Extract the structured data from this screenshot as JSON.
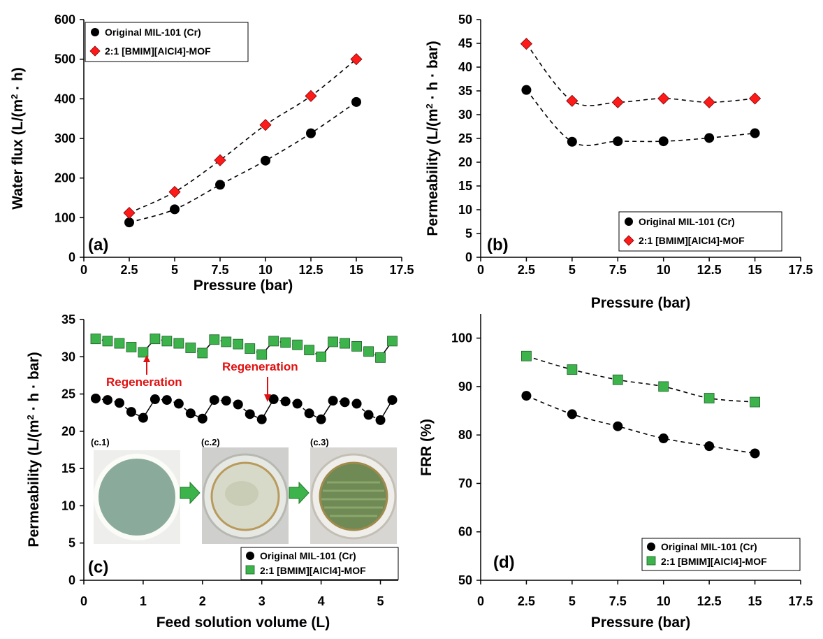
{
  "colors": {
    "original": "#000000",
    "ionic_red": "#ff1a1a",
    "ionic_green": "#3cb44b",
    "annotation": "#e01010"
  },
  "legend": {
    "series_a": "Original MIL-101 (Cr)",
    "series_b": "2:1 [BMIM][AlCl4]-MOF"
  },
  "chart_data": [
    {
      "panel": "(a)",
      "type": "scatter",
      "xlabel": "Pressure (bar)",
      "ylabel": "Water flux (L/(m2 · h)",
      "xlim": [
        0,
        17.5
      ],
      "ylim": [
        0,
        600
      ],
      "xticks": [
        "0",
        "2.5",
        "5",
        "7.5",
        "10",
        "12.5",
        "15",
        "17.5"
      ],
      "yticks": [
        "0",
        "100",
        "200",
        "300",
        "400",
        "500",
        "600"
      ],
      "legend_position": "top-left",
      "series": [
        {
          "name": "Original MIL-101 (Cr)",
          "marker": "circle",
          "color": "#000000",
          "x": [
            2.5,
            5,
            7.5,
            10,
            12.5,
            15
          ],
          "y": [
            88,
            121,
            183,
            244,
            313,
            392
          ]
        },
        {
          "name": "2:1 [BMIM][AlCl4]-MOF",
          "marker": "diamond",
          "color": "#ff1a1a",
          "x": [
            2.5,
            5,
            7.5,
            10,
            12.5,
            15
          ],
          "y": [
            112,
            165,
            245,
            334,
            407,
            500
          ]
        }
      ]
    },
    {
      "panel": "(b)",
      "type": "scatter",
      "xlabel": "Pressure (bar)",
      "ylabel": "Permeability (L/(m2 · h · bar)",
      "xlim": [
        0,
        17.5
      ],
      "ylim": [
        0,
        50
      ],
      "xticks": [
        "0",
        "2.5",
        "5",
        "7.5",
        "10",
        "12.5",
        "15",
        "17.5"
      ],
      "yticks": [
        "0",
        "5",
        "10",
        "15",
        "20",
        "25",
        "30",
        "35",
        "40",
        "45",
        "50"
      ],
      "legend_position": "bottom-right",
      "series": [
        {
          "name": "Original MIL-101 (Cr)",
          "marker": "circle",
          "color": "#000000",
          "x": [
            2.5,
            5,
            7.5,
            10,
            12.5,
            15
          ],
          "y": [
            35.2,
            24.3,
            24.4,
            24.4,
            25.1,
            26.1
          ]
        },
        {
          "name": "2:1 [BMIM][AlCl4]-MOF",
          "marker": "diamond",
          "color": "#ff1a1a",
          "x": [
            2.5,
            5,
            7.5,
            10,
            12.5,
            15
          ],
          "y": [
            44.9,
            32.9,
            32.6,
            33.4,
            32.6,
            33.4
          ]
        }
      ]
    },
    {
      "panel": "(c)",
      "type": "scatter",
      "xlabel": "Feed solution volume (L)",
      "ylabel": "Permeability (L/(m2 · h · bar)",
      "xlim": [
        0,
        5.3
      ],
      "ylim": [
        0,
        35
      ],
      "xticks": [
        "0",
        "1",
        "2",
        "3",
        "4",
        "5"
      ],
      "yticks": [
        "0",
        "5",
        "10",
        "15",
        "20",
        "25",
        "30",
        "35"
      ],
      "legend_position": "bottom-right",
      "annotations": [
        "Regeneration",
        "Regeneration"
      ],
      "image_labels": [
        "(c.1)",
        "(c.2)",
        "(c.3)"
      ],
      "series": [
        {
          "name": "Original MIL-101 (Cr)",
          "marker": "circle",
          "color": "#000000",
          "x": [
            0.2,
            0.4,
            0.6,
            0.8,
            1.0,
            1.2,
            1.4,
            1.6,
            1.8,
            2.0,
            2.2,
            2.4,
            2.6,
            2.8,
            3.0,
            3.2,
            3.4,
            3.6,
            3.8,
            4.0,
            4.2,
            4.4,
            4.6,
            4.8,
            5.0,
            5.2
          ],
          "y": [
            24.4,
            24.2,
            23.8,
            22.6,
            21.8,
            24.3,
            24.2,
            23.7,
            22.4,
            21.7,
            24.2,
            24.1,
            23.6,
            22.3,
            21.6,
            24.3,
            24.0,
            23.7,
            22.4,
            21.6,
            24.1,
            23.9,
            23.7,
            22.2,
            21.5,
            24.2
          ]
        },
        {
          "name": "2:1 [BMIM][AlCl4]-MOF",
          "marker": "square",
          "color": "#3cb44b",
          "x": [
            0.2,
            0.4,
            0.6,
            0.8,
            1.0,
            1.2,
            1.4,
            1.6,
            1.8,
            2.0,
            2.2,
            2.4,
            2.6,
            2.8,
            3.0,
            3.2,
            3.4,
            3.6,
            3.8,
            4.0,
            4.2,
            4.4,
            4.6,
            4.8,
            5.0,
            5.2
          ],
          "y": [
            32.4,
            32.1,
            31.8,
            31.3,
            30.6,
            32.4,
            32.1,
            31.8,
            31.2,
            30.5,
            32.3,
            32.0,
            31.7,
            31.1,
            30.3,
            32.1,
            31.9,
            31.6,
            30.9,
            30.0,
            32.0,
            31.8,
            31.4,
            30.7,
            29.9,
            32.1
          ]
        }
      ]
    },
    {
      "panel": "(d)",
      "type": "scatter",
      "xlabel": "Pressure (bar)",
      "ylabel": "FRR (%)",
      "xlim": [
        0,
        17.5
      ],
      "ylim": [
        50,
        105
      ],
      "xticks": [
        "0",
        "2.5",
        "5",
        "7.5",
        "10",
        "12.5",
        "15",
        "17.5"
      ],
      "yticks": [
        "50",
        "60",
        "70",
        "80",
        "90",
        "100"
      ],
      "legend_position": "bottom-right",
      "series": [
        {
          "name": "Original MIL-101 (Cr)",
          "marker": "circle",
          "color": "#000000",
          "x": [
            2.5,
            5,
            7.5,
            10,
            12.5,
            15
          ],
          "y": [
            88.1,
            84.3,
            81.8,
            79.3,
            77.7,
            76.2
          ]
        },
        {
          "name": "2:1 [BMIM][AlCl4]-MOF",
          "marker": "square",
          "color": "#3cb44b",
          "x": [
            2.5,
            5,
            7.5,
            10,
            12.5,
            15
          ],
          "y": [
            96.3,
            93.5,
            91.4,
            90.0,
            87.6,
            86.8
          ]
        }
      ]
    }
  ]
}
